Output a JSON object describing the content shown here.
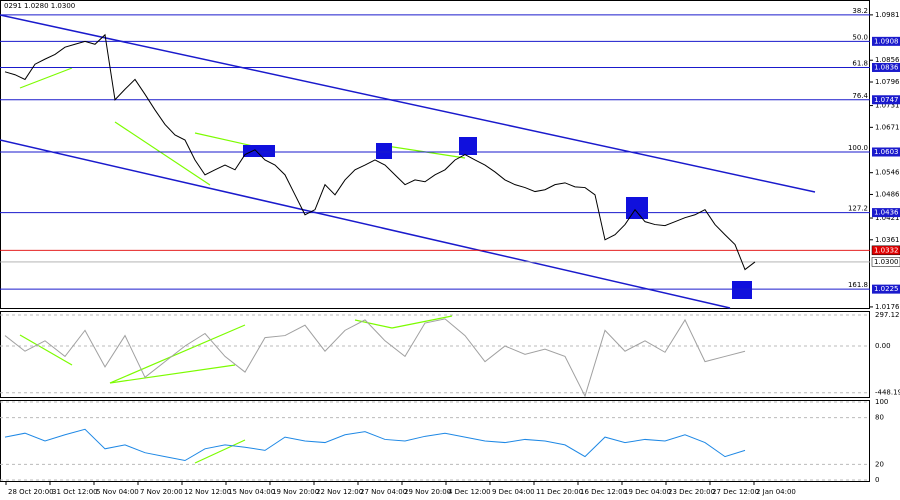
{
  "chart_data": {
    "type": "line",
    "title": "0291 1.0280 1.0300",
    "color": "#000000",
    "ylim": [
      1.0173,
      1.1022
    ],
    "yticks": [
      1.0981,
      1.0856,
      1.0796,
      1.0731,
      1.0671,
      1.0546,
      1.0486,
      1.0421,
      1.0361,
      1.0176
    ],
    "levels": [
      {
        "value": 1.0981,
        "fib": "38.2"
      },
      {
        "value": 1.0908,
        "label": "1.0908",
        "fib": "50.0"
      },
      {
        "value": 1.0836,
        "label": "1.0836",
        "fib": "61.8"
      },
      {
        "value": 1.0747,
        "label": "1.0747",
        "fib": "76.4"
      },
      {
        "value": 1.0603,
        "label": "1.0603",
        "fib": "100.0"
      },
      {
        "value": 1.0436,
        "label": "1.0436",
        "fib": "127.2"
      },
      {
        "value": 1.0225,
        "label": "1.0225",
        "fib": "161.8"
      }
    ],
    "markers": [
      {
        "value": 1.0332,
        "label": "1.0332",
        "color": "#e00000"
      },
      {
        "value": 1.03,
        "label": "1.0300",
        "color": "#ffffff"
      }
    ],
    "values": [
      1.0824,
      1.0816,
      1.0803,
      1.0845,
      1.0859,
      1.0872,
      1.0892,
      1.09,
      1.0908,
      1.09,
      1.0926,
      1.0747,
      1.0776,
      1.0803,
      1.0762,
      1.0719,
      1.0679,
      1.065,
      1.0636,
      1.0581,
      1.054,
      1.0554,
      1.0567,
      1.0554,
      1.0596,
      1.0609,
      1.0581,
      1.0567,
      1.054,
      1.0485,
      1.043,
      1.0444,
      1.0513,
      1.0485,
      1.0526,
      1.0554,
      1.0567,
      1.0581,
      1.0567,
      1.054,
      1.0513,
      1.0526,
      1.0521,
      1.054,
      1.0554,
      1.0581,
      1.0596,
      1.0581,
      1.0567,
      1.0548,
      1.0526,
      1.0513,
      1.0505,
      1.0494,
      1.0499,
      1.0513,
      1.0518,
      1.0507,
      1.0505,
      1.0485,
      1.0361,
      1.0375,
      1.0403,
      1.0444,
      1.0411,
      1.0403,
      1.04,
      1.0411,
      1.0422,
      1.043,
      1.0444,
      1.0403,
      1.0375,
      1.0348,
      1.0279,
      1.03
    ],
    "x_labels": [
      "28 Oct 20:00",
      "31 Oct 12:00",
      "5 Nov 04:00",
      "7 Nov 20:00",
      "12 Nov 12:00",
      "15 Nov 04:00",
      "19 Nov 20:00",
      "22 Nov 12:00",
      "27 Nov 04:00",
      "29 Nov 20:00",
      "4 Dec 12:00",
      "9 Dec 04:00",
      "11 Dec 20:00",
      "16 Dec 12:00",
      "19 Dec 04:00",
      "23 Dec 20:00",
      "27 Dec 12:00",
      "2 Jan 04:00"
    ],
    "cci": {
      "color": "#a0a0a0",
      "ylim": [
        -489,
        326
      ],
      "yticks": [
        297.1261,
        {
          "value": 0,
          "label": "0.00"
        },
        -448.195
      ],
      "values": [
        100,
        -50,
        50,
        -100,
        150,
        -200,
        100,
        -300,
        -150,
        0,
        120,
        -100,
        -250,
        80,
        100,
        200,
        -50,
        150,
        250,
        50,
        -100,
        220,
        260,
        100,
        -150,
        0,
        -80,
        -30,
        -100,
        -480,
        150,
        -50,
        50,
        -60,
        250,
        -150,
        -100,
        -50
      ]
    },
    "rsi": {
      "color": "#1e88e5",
      "ylim": [
        0,
        100
      ],
      "yticks": [
        100,
        80,
        20,
        0
      ],
      "values": [
        55,
        60,
        50,
        58,
        65,
        40,
        45,
        35,
        30,
        25,
        40,
        45,
        42,
        38,
        55,
        50,
        48,
        58,
        62,
        52,
        50,
        56,
        60,
        55,
        50,
        48,
        52,
        50,
        45,
        30,
        55,
        48,
        52,
        50,
        58,
        48,
        30,
        38
      ]
    }
  }
}
